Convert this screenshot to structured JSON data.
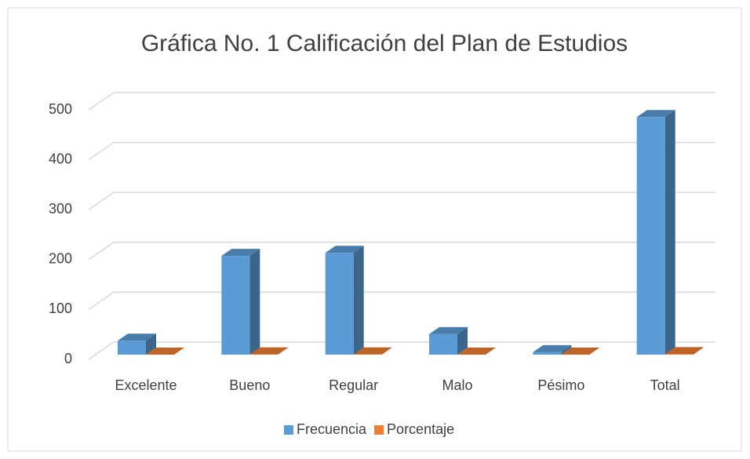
{
  "chart_data": {
    "type": "bar3d",
    "title": "Gráfica No. 1 Calificación del Plan de Estudios",
    "categories": [
      "Excelente",
      "Bueno",
      "Regular",
      "Malo",
      "Pésimo",
      "Total"
    ],
    "series": [
      {
        "name": "Frecuencia",
        "color": "#5b9bd5",
        "values": [
          28,
          198,
          204,
          41,
          5,
          476
        ]
      },
      {
        "name": "Porcentaje",
        "color": "#ed7d31",
        "values": [
          0.06,
          0.42,
          0.43,
          0.09,
          0.01,
          1
        ]
      }
    ],
    "ylim": [
      0,
      500
    ],
    "yticks": [
      0,
      100,
      200,
      300,
      400,
      500
    ],
    "grid": true,
    "legend": "bottom"
  }
}
